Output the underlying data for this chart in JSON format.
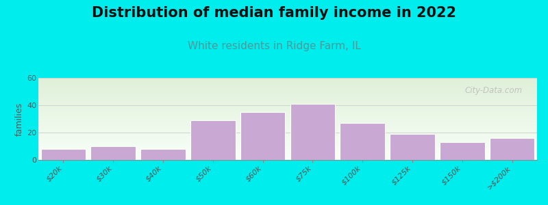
{
  "title": "Distribution of median family income in 2022",
  "subtitle": "White residents in Ridge Farm, IL",
  "ylabel": "families",
  "categories": [
    "$20k",
    "$30k",
    "$40k",
    "$50k",
    "$60k",
    "$75k",
    "$100k",
    "$125k",
    "$150k",
    ">$200k"
  ],
  "values": [
    8,
    10,
    8,
    29,
    35,
    41,
    27,
    19,
    13,
    16
  ],
  "bar_color": "#c9a8d4",
  "bar_edgecolor": "#ffffff",
  "ylim": [
    0,
    60
  ],
  "yticks": [
    0,
    20,
    40,
    60
  ],
  "background_color": "#00eded",
  "plot_bg_color_top": "#dff0d8",
  "plot_bg_color_bottom": "#f8fff8",
  "title_fontsize": 15,
  "title_color": "#111111",
  "subtitle_fontsize": 11,
  "subtitle_color": "#4a9a9a",
  "ylabel_fontsize": 9,
  "tick_label_fontsize": 8,
  "watermark_text": "City-Data.com",
  "watermark_color": "#bbbbbb"
}
